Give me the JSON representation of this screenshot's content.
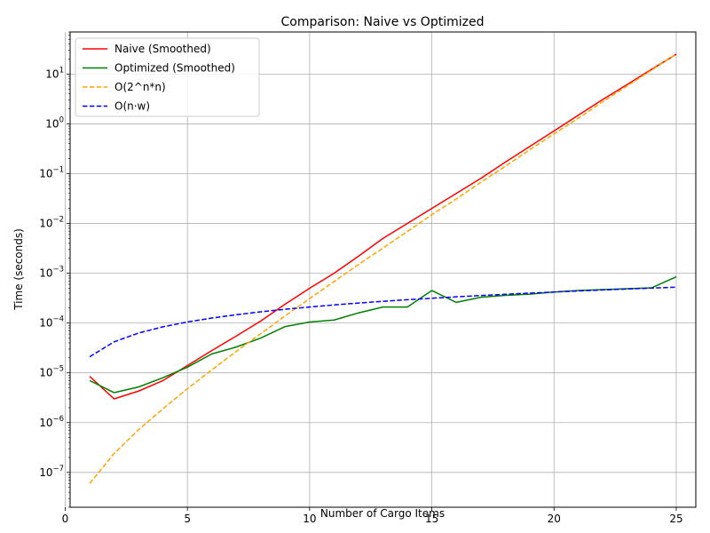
{
  "chart_data": {
    "type": "line",
    "title": "Comparison: Naive vs Optimized",
    "xlabel": "Number of Cargo Items",
    "ylabel": "Time (seconds)",
    "xlim": [
      0.2,
      25.8
    ],
    "ylim": [
      2e-08,
      70
    ],
    "yscale": "log",
    "grid": true,
    "legend_position": "upper-left",
    "x_ticks": [
      0,
      5,
      10,
      15,
      20,
      25
    ],
    "y_ticks": [
      {
        "value": 1e-07,
        "base": "10",
        "exp": "−7"
      },
      {
        "value": 1e-06,
        "base": "10",
        "exp": "−6"
      },
      {
        "value": 1e-05,
        "base": "10",
        "exp": "−5"
      },
      {
        "value": 0.0001,
        "base": "10",
        "exp": "−4"
      },
      {
        "value": 0.001,
        "base": "10",
        "exp": "−3"
      },
      {
        "value": 0.01,
        "base": "10",
        "exp": "−2"
      },
      {
        "value": 0.1,
        "base": "10",
        "exp": "−1"
      },
      {
        "value": 1,
        "base": "10",
        "exp": "0"
      },
      {
        "value": 10,
        "base": "10",
        "exp": "1"
      }
    ],
    "series": [
      {
        "name": "Naive (Smoothed)",
        "color": "#ff0000",
        "dash": "solid",
        "x": [
          1,
          2,
          3,
          4,
          5,
          6,
          7,
          8,
          9,
          10,
          11,
          12,
          13,
          14,
          15,
          16,
          17,
          18,
          19,
          20,
          21,
          22,
          23,
          24,
          25
        ],
        "y": [
          8.5e-06,
          3e-06,
          4.3e-06,
          7e-06,
          1.4e-05,
          2.8e-05,
          5.5e-05,
          0.00011,
          0.00024,
          0.0005,
          0.001,
          0.0022,
          0.005,
          0.01,
          0.02,
          0.04,
          0.08,
          0.17,
          0.35,
          0.72,
          1.5,
          3.1,
          6.2,
          12.5,
          25
        ]
      },
      {
        "name": "Optimized (Smoothed)",
        "color": "#008000",
        "dash": "solid",
        "x": [
          1,
          2,
          3,
          4,
          5,
          6,
          7,
          8,
          9,
          10,
          11,
          12,
          13,
          14,
          15,
          16,
          17,
          18,
          19,
          20,
          21,
          22,
          23,
          24,
          25
        ],
        "y": [
          7e-06,
          4e-06,
          5.2e-06,
          8e-06,
          1.3e-05,
          2.4e-05,
          3.3e-05,
          5e-05,
          8.5e-05,
          0.000105,
          0.000115,
          0.00016,
          0.00021,
          0.00021,
          0.00045,
          0.00026,
          0.00033,
          0.00036,
          0.00038,
          0.00042,
          0.00045,
          0.00047,
          0.00049,
          0.00051,
          0.00085
        ]
      },
      {
        "name": "O(2^n*n)",
        "color": "#ffa500",
        "dash": "dashed",
        "x": [
          1,
          2,
          3,
          4,
          5,
          6,
          7,
          8,
          9,
          10,
          11,
          12,
          13,
          14,
          15,
          16,
          17,
          18,
          19,
          20,
          21,
          22,
          23,
          24,
          25
        ],
        "y": [
          6e-08,
          2.4e-07,
          7.2e-07,
          1.9e-06,
          4.8e-06,
          1.15e-05,
          2.7e-05,
          6.1e-05,
          0.00014,
          0.00031,
          0.00068,
          0.0015,
          0.0032,
          0.0069,
          0.015,
          0.031,
          0.067,
          0.14,
          0.3,
          0.63,
          1.3,
          2.8,
          5.8,
          12.1,
          25.2
        ]
      },
      {
        "name": "O(n·w)",
        "color": "#0000ff",
        "dash": "dashed",
        "x": [
          1,
          2,
          3,
          4,
          5,
          6,
          7,
          8,
          9,
          10,
          11,
          12,
          13,
          14,
          15,
          16,
          17,
          18,
          19,
          20,
          21,
          22,
          23,
          24,
          25
        ],
        "y": [
          2.1e-05,
          4.2e-05,
          6.3e-05,
          8.4e-05,
          0.000105,
          0.000126,
          0.000147,
          0.000168,
          0.000189,
          0.00021,
          0.000231,
          0.000252,
          0.000273,
          0.000294,
          0.000315,
          0.000336,
          0.000357,
          0.000378,
          0.000399,
          0.00042,
          0.000441,
          0.000462,
          0.000483,
          0.000504,
          0.000525
        ]
      }
    ]
  }
}
